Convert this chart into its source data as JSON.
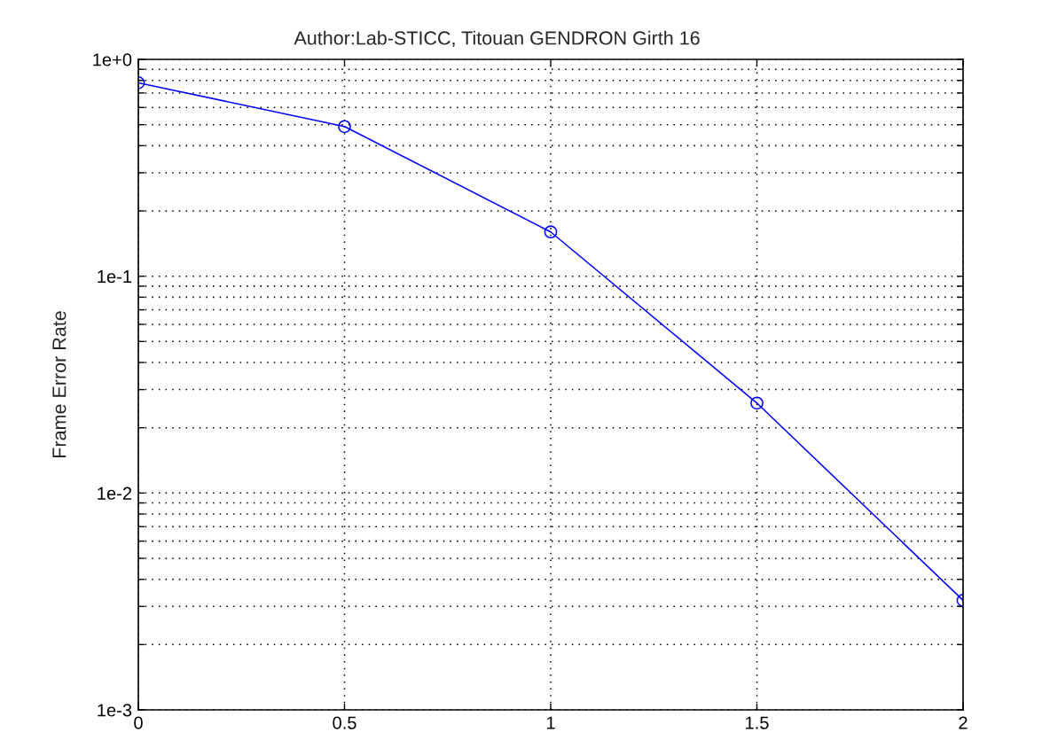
{
  "chart_data": {
    "type": "line",
    "title": "Author:Lab-STICC, Titouan GENDRON Girth 16",
    "ylabel": "Frame Error Rate",
    "x": [
      0,
      0.5,
      1,
      1.5,
      2
    ],
    "series": [
      {
        "color": "#0000ff",
        "values": [
          0.78,
          0.49,
          0.16,
          0.026,
          0.0032
        ]
      }
    ],
    "xlim": [
      0,
      2
    ],
    "xticks": [
      0,
      0.5,
      1,
      1.5,
      2
    ],
    "ylim": [
      0.001,
      1
    ],
    "yticks": [
      {
        "value": 0.001,
        "label": "1e-3"
      },
      {
        "value": 0.002,
        "label": null
      },
      {
        "value": 0.003,
        "label": null
      },
      {
        "value": 0.004,
        "label": null
      },
      {
        "value": 0.005,
        "label": null
      },
      {
        "value": 0.006,
        "label": null
      },
      {
        "value": 0.007,
        "label": null
      },
      {
        "value": 0.008,
        "label": null
      },
      {
        "value": 0.009,
        "label": null
      },
      {
        "value": 0.01,
        "label": "1e-2"
      },
      {
        "value": 0.02,
        "label": null
      },
      {
        "value": 0.03,
        "label": null
      },
      {
        "value": 0.04,
        "label": null
      },
      {
        "value": 0.05,
        "label": null
      },
      {
        "value": 0.06,
        "label": null
      },
      {
        "value": 0.07,
        "label": null
      },
      {
        "value": 0.08,
        "label": null
      },
      {
        "value": 0.09,
        "label": null
      },
      {
        "value": 0.1,
        "label": "1e-1"
      },
      {
        "value": 0.2,
        "label": null
      },
      {
        "value": 0.3,
        "label": null
      },
      {
        "value": 0.4,
        "label": null
      },
      {
        "value": 0.5,
        "label": null
      },
      {
        "value": 0.6,
        "label": null
      },
      {
        "value": 0.7,
        "label": null
      },
      {
        "value": 0.8,
        "label": null
      },
      {
        "value": 0.9,
        "label": null
      },
      {
        "value": 1,
        "label": "1e+0"
      }
    ],
    "log": "y",
    "grid": true,
    "marker": "circle",
    "line_style": "solid"
  }
}
